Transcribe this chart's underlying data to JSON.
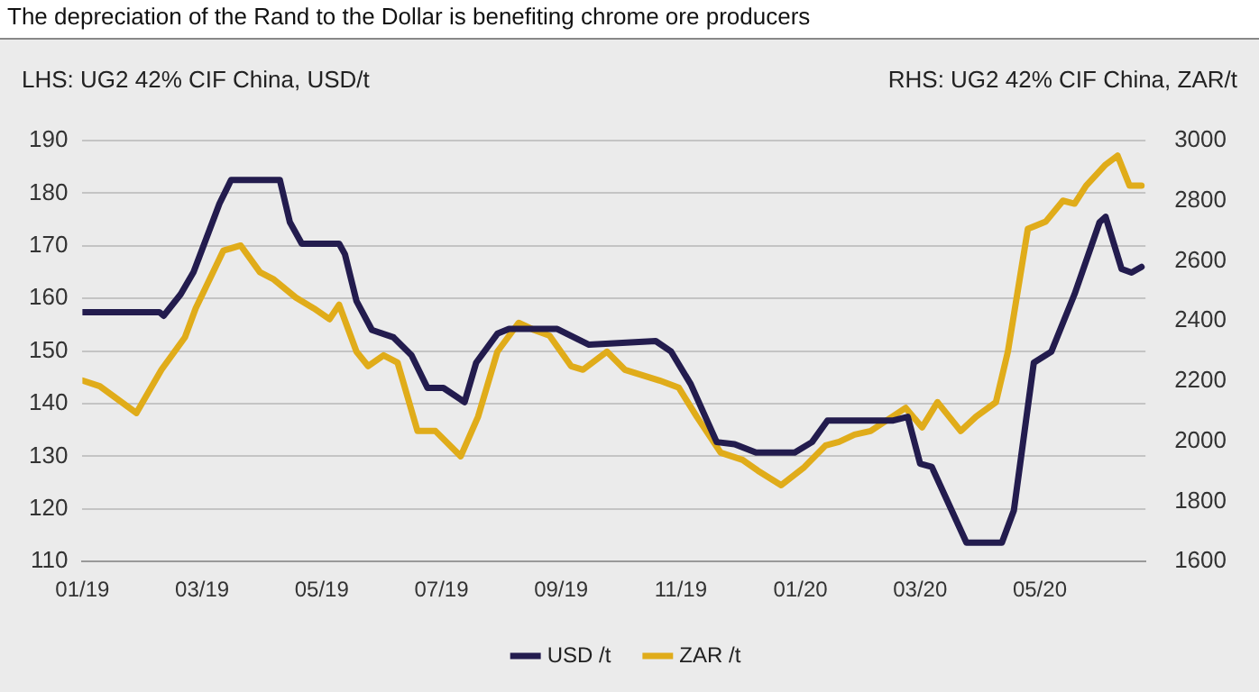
{
  "chart_data": {
    "type": "line",
    "title": "The depreciation of the Rand to the Dollar is benefiting chrome ore producers",
    "ylabel": "LHS: UG2 42% CIF China, USD/t",
    "y2label": "RHS: UG2 42% CIF China, ZAR/t",
    "xlim": [
      "2019-01-01",
      "2020-06-24"
    ],
    "xticks": [
      {
        "value": "2019-01",
        "label": "01/19"
      },
      {
        "value": "2019-03",
        "label": "03/19"
      },
      {
        "value": "2019-05",
        "label": "05/19"
      },
      {
        "value": "2019-07",
        "label": "07/19"
      },
      {
        "value": "2019-09",
        "label": "09/19"
      },
      {
        "value": "2019-11",
        "label": "11/19"
      },
      {
        "value": "2020-01",
        "label": "01/20"
      },
      {
        "value": "2020-03",
        "label": "03/20"
      },
      {
        "value": "2020-05",
        "label": "05/20"
      }
    ],
    "ylim": [
      110,
      190
    ],
    "yticks": [
      110,
      120,
      130,
      140,
      150,
      160,
      170,
      180,
      190
    ],
    "y2lim": [
      1600,
      3000
    ],
    "y2ticks": [
      1600,
      1800,
      2000,
      2200,
      2400,
      2600,
      2800,
      3000
    ],
    "grid": "y",
    "legend": "bottom",
    "marker": "none",
    "line_style": "solid",
    "series": [
      {
        "name": "USD /t",
        "color": "#231c4e",
        "x": [
          "2019-01-01",
          "2019-02-09",
          "2019-02-11",
          "2019-02-19",
          "2019-02-25",
          "2019-03-10",
          "2019-03-16",
          "2019-04-10",
          "2019-04-15",
          "2019-04-21",
          "2019-05-10",
          "2019-05-13",
          "2019-05-19",
          "2019-05-27",
          "2019-06-07",
          "2019-06-16",
          "2019-06-24",
          "2019-07-02",
          "2019-07-13",
          "2019-07-19",
          "2019-07-30",
          "2019-08-05",
          "2019-08-30",
          "2019-09-15",
          "2019-10-19",
          "2019-10-27",
          "2019-11-06",
          "2019-11-19",
          "2019-11-28",
          "2019-12-09",
          "2019-12-29",
          "2020-01-07",
          "2020-01-15",
          "2020-02-17",
          "2020-02-24",
          "2020-03-01",
          "2020-03-07",
          "2020-03-25",
          "2020-04-12",
          "2020-04-18",
          "2020-04-28",
          "2020-05-07",
          "2020-05-19",
          "2020-06-01",
          "2020-06-04",
          "2020-06-12",
          "2020-06-17",
          "2020-06-22"
        ],
        "values": [
          157.4,
          157.4,
          156.7,
          160.8,
          165,
          178,
          182.5,
          182.5,
          174.5,
          170.4,
          170.4,
          168.4,
          159.5,
          154,
          152.6,
          149.2,
          143,
          143,
          140.3,
          147.8,
          153.3,
          154.2,
          154.2,
          151.2,
          151.9,
          149.9,
          143.7,
          132.7,
          132.3,
          130.7,
          130.7,
          132.7,
          136.8,
          136.8,
          137.5,
          128.6,
          128,
          113.6,
          113.6,
          119.7,
          147.8,
          149.9,
          160.8,
          174.5,
          175.5,
          165.6,
          164.9,
          166
        ]
      },
      {
        "name": "ZAR /t",
        "color": "#e0ac1a",
        "axis": "y2",
        "x": [
          "2019-01-01",
          "2019-01-10",
          "2019-01-29",
          "2019-02-10",
          "2019-02-21",
          "2019-02-26",
          "2019-03-12",
          "2019-03-21",
          "2019-03-31",
          "2019-04-07",
          "2019-04-18",
          "2019-04-27",
          "2019-05-05",
          "2019-05-10",
          "2019-05-19",
          "2019-05-25",
          "2019-06-02",
          "2019-06-09",
          "2019-06-19",
          "2019-06-28",
          "2019-07-11",
          "2019-07-20",
          "2019-07-30",
          "2019-08-10",
          "2019-08-18",
          "2019-08-26",
          "2019-09-06",
          "2019-09-12",
          "2019-09-24",
          "2019-10-03",
          "2019-10-15",
          "2019-10-21",
          "2019-10-31",
          "2019-11-09",
          "2019-11-21",
          "2019-12-02",
          "2019-12-10",
          "2019-12-22",
          "2020-01-03",
          "2020-01-14",
          "2020-01-21",
          "2020-01-29",
          "2020-02-06",
          "2020-02-23",
          "2020-03-02",
          "2020-03-10",
          "2020-03-22",
          "2020-03-30",
          "2020-04-09",
          "2020-04-15",
          "2020-04-25",
          "2020-05-04",
          "2020-05-13",
          "2020-05-19",
          "2020-05-25",
          "2020-06-04",
          "2020-06-10",
          "2020-06-16",
          "2020-06-22"
        ],
        "values": [
          2202,
          2183,
          2094,
          2238,
          2346,
          2442,
          2634,
          2651,
          2562,
          2538,
          2478,
          2442,
          2406,
          2454,
          2298,
          2250,
          2286,
          2262,
          2034,
          2034,
          1950,
          2082,
          2298,
          2394,
          2370,
          2351,
          2250,
          2238,
          2298,
          2238,
          2214,
          2202,
          2178,
          2082,
          1962,
          1938,
          1902,
          1854,
          1914,
          1986,
          1998,
          2022,
          2034,
          2111,
          2046,
          2130,
          2034,
          2082,
          2130,
          2298,
          2706,
          2730,
          2800,
          2790,
          2850,
          2920,
          2950,
          2850,
          2850
        ]
      }
    ]
  }
}
